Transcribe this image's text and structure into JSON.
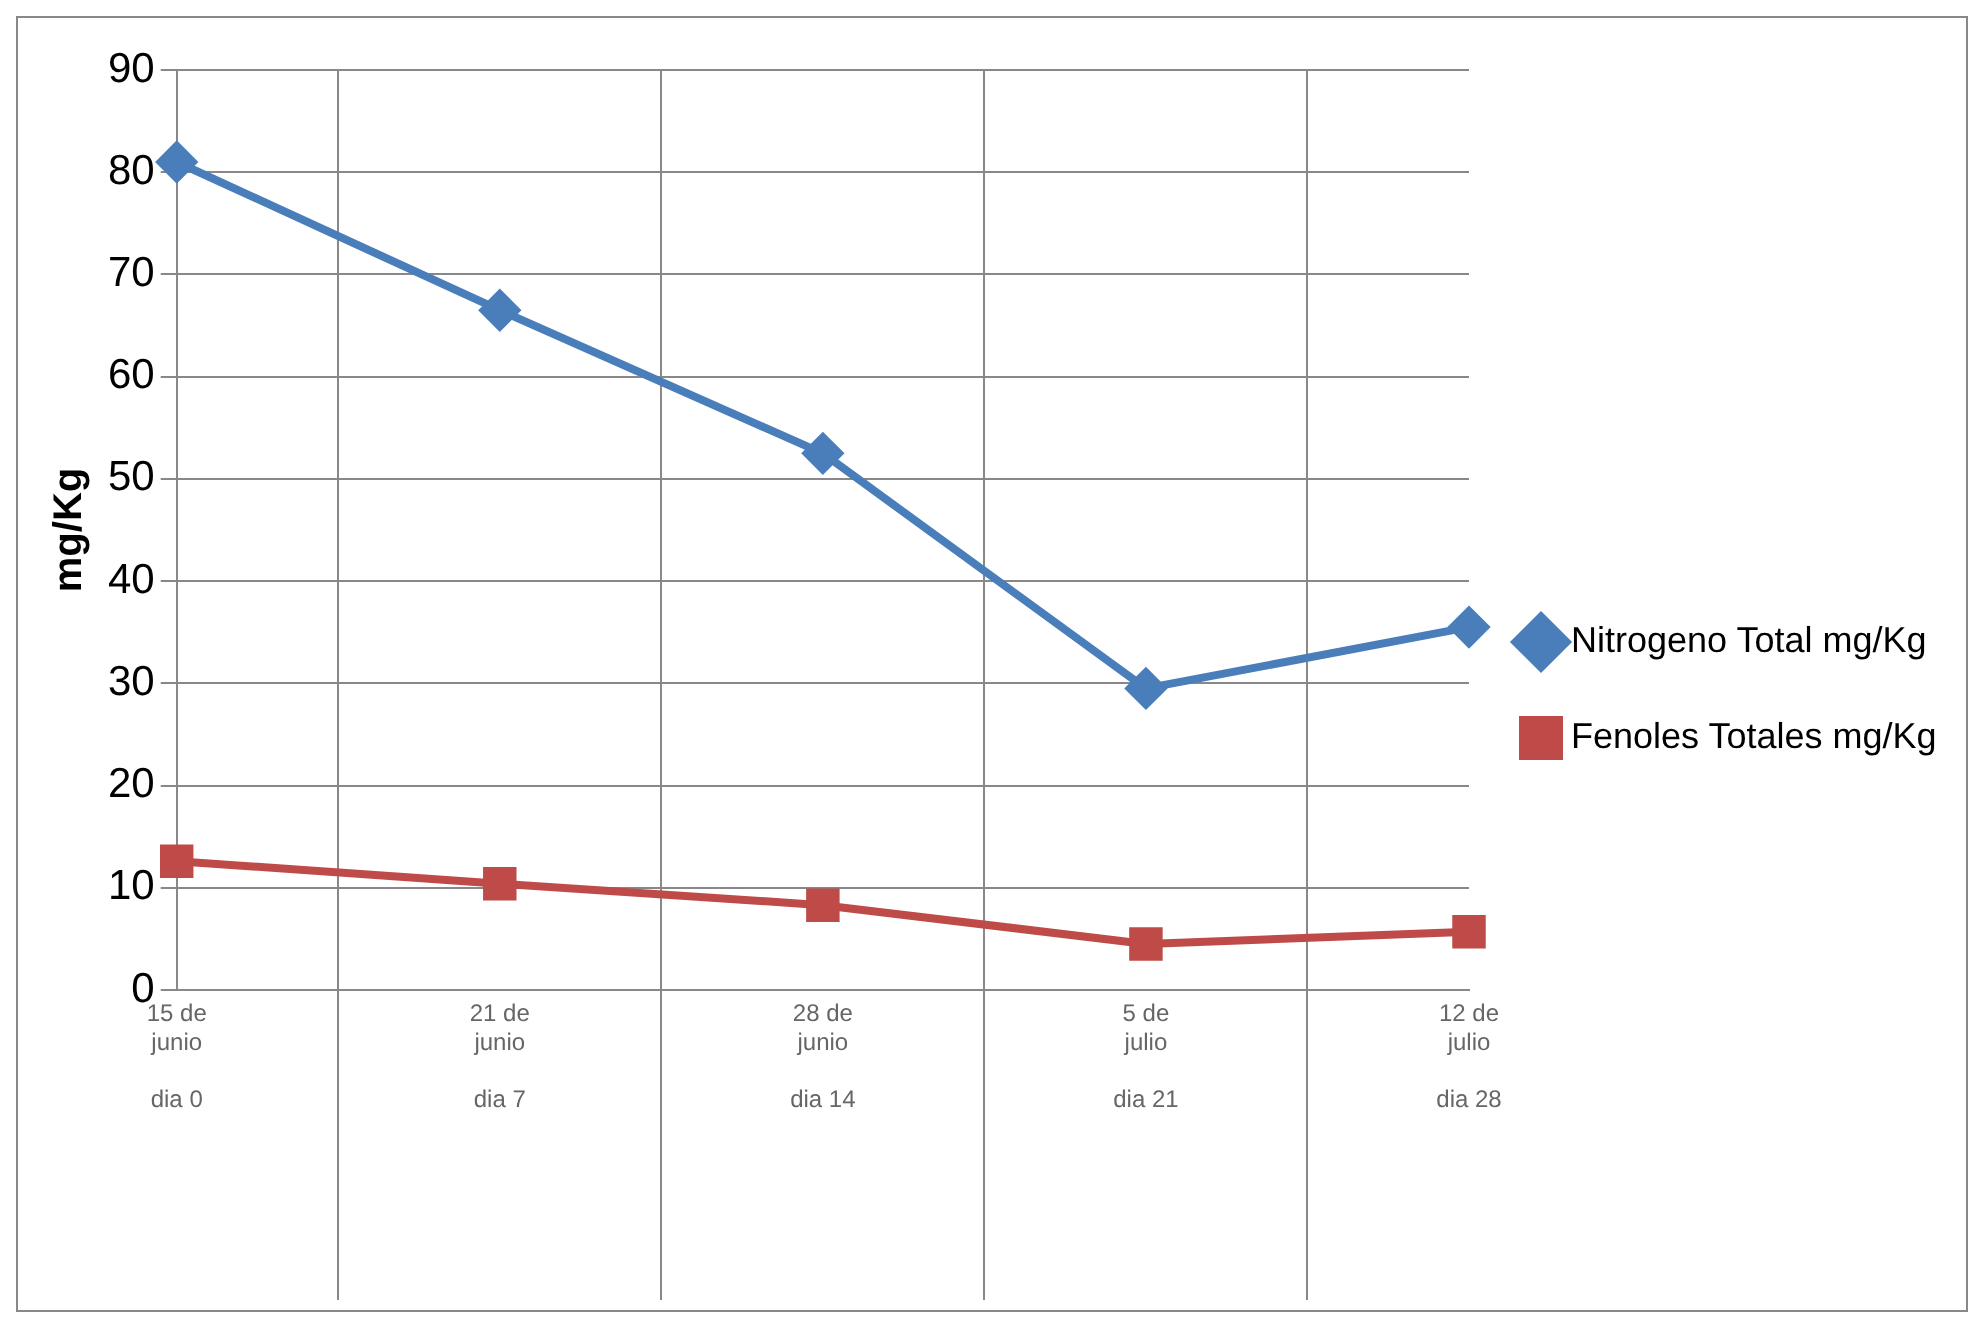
{
  "chart_data": {
    "type": "line",
    "ylabel": "mg/Kg",
    "categories": [
      "15 de\njunio\n\ndia 0",
      "21 de\njunio\n\ndia 7",
      "28 de\njunio\n\ndia 14",
      "5 de\njulio\n\ndia 21",
      "12 de\njulio\n\ndia 28"
    ],
    "series": [
      {
        "name": "Nitrogeno Total mg/Kg",
        "color": "#4a7ebb",
        "marker": "diamond",
        "values": [
          81,
          66.5,
          52.5,
          29.5,
          35.5
        ]
      },
      {
        "name": "Fenoles Totales mg/Kg",
        "color": "#be4b48",
        "marker": "square",
        "values": [
          12.6,
          10.4,
          8.3,
          4.5,
          5.7
        ]
      }
    ],
    "ylim": [
      0,
      90
    ],
    "yticks": [
      0,
      10,
      20,
      30,
      40,
      50,
      60,
      70,
      80,
      90
    ],
    "grid": true,
    "legend": "right"
  }
}
